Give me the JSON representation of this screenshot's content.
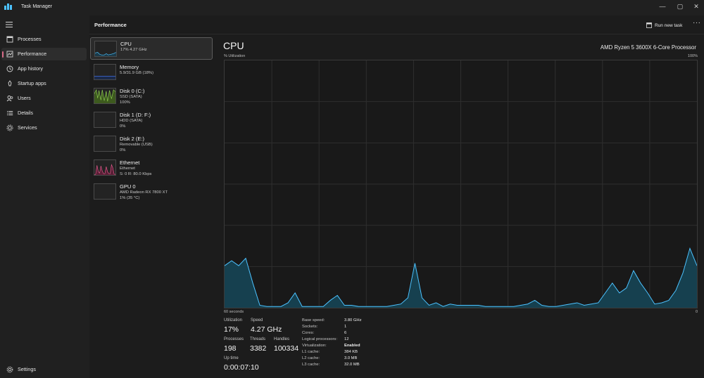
{
  "window": {
    "title": "Task Manager",
    "minimize": "—",
    "maximize": "▢",
    "close": "✕"
  },
  "nav": {
    "items": [
      {
        "label": "Processes",
        "icon": "processes-icon"
      },
      {
        "label": "Performance",
        "icon": "performance-icon",
        "active": true
      },
      {
        "label": "App history",
        "icon": "app-history-icon"
      },
      {
        "label": "Startup apps",
        "icon": "startup-apps-icon"
      },
      {
        "label": "Users",
        "icon": "users-icon"
      },
      {
        "label": "Details",
        "icon": "details-icon"
      },
      {
        "label": "Services",
        "icon": "services-icon"
      }
    ],
    "settings": "Settings"
  },
  "header": {
    "title": "Performance",
    "run_task": "Run new task",
    "more": "···"
  },
  "devices": [
    {
      "name": "CPU",
      "sub1": "17%  4.27 GHz",
      "sub2": "",
      "color": "#4cc2ff",
      "fill": "#1b3a4a"
    },
    {
      "name": "Memory",
      "sub1": "5.9/31.9 GB (18%)",
      "sub2": "",
      "color": "#4c7dff",
      "fill": "#1b2a4a"
    },
    {
      "name": "Disk 0 (C:)",
      "sub1": "SSD (SATA)",
      "sub2": "100%",
      "color": "#8fd14f",
      "fill": "#3d5a1e"
    },
    {
      "name": "Disk 1 (D: F:)",
      "sub1": "HDD (SATA)",
      "sub2": "0%",
      "color": "#8fd14f",
      "fill": "#3d5a1e"
    },
    {
      "name": "Disk 2 (E:)",
      "sub1": "Removable (USB)",
      "sub2": "0%",
      "color": "#8fd14f",
      "fill": "#3d5a1e"
    },
    {
      "name": "Ethernet",
      "sub1": "Ethernet",
      "sub2": "S: 0  R: 80.0 Kbps",
      "color": "#e25a8c",
      "fill": "#5a1e36"
    },
    {
      "name": "GPU 0",
      "sub1": "AMD Radeon RX 7800 XT",
      "sub2": "1%  (35 °C)",
      "color": "#4cc2ff",
      "fill": "#1b3a4a"
    }
  ],
  "detail": {
    "title": "CPU",
    "model": "AMD Ryzen 5 3600X 6-Core Processor",
    "util_label": "% Utilization",
    "max_label": "100%",
    "time_label": "60 seconds",
    "zero_label": "0",
    "accent": "#4cc2ff",
    "fill": "#16404f",
    "history": [
      17,
      19,
      17,
      20,
      10,
      1,
      0.5,
      0.5,
      0.5,
      2,
      6,
      0.5,
      0.5,
      0.5,
      0.5,
      3,
      5,
      1,
      1,
      0.5,
      0.5,
      0.5,
      0.5,
      0.5,
      1,
      1.5,
      4,
      18,
      4,
      1,
      2,
      0.5,
      1.5,
      1,
      1,
      1,
      1,
      0.5,
      0.5,
      0.5,
      0.5,
      0.5,
      1,
      1.5,
      3,
      1,
      0.5,
      0.5,
      1,
      1.5,
      2,
      1,
      1.5,
      2,
      6,
      10,
      6,
      8,
      15,
      10,
      6,
      1.5,
      2,
      3,
      7,
      14,
      24,
      17
    ]
  },
  "stats": {
    "utilization": {
      "label": "Utilization",
      "value": "17%"
    },
    "speed": {
      "label": "Speed",
      "value": "4.27 GHz"
    },
    "processes": {
      "label": "Processes",
      "value": "198"
    },
    "threads": {
      "label": "Threads",
      "value": "3382"
    },
    "handles": {
      "label": "Handles",
      "value": "100334"
    },
    "uptime": {
      "label": "Up time",
      "value": "0:00:07:10"
    }
  },
  "specs": [
    {
      "k": "Base speed:",
      "v": "3.80 GHz"
    },
    {
      "k": "Sockets:",
      "v": "1"
    },
    {
      "k": "Cores:",
      "v": "6"
    },
    {
      "k": "Logical processors:",
      "v": "12"
    },
    {
      "k": "Virtualization:",
      "v": "Enabled"
    },
    {
      "k": "L1 cache:",
      "v": "384 KB"
    },
    {
      "k": "L2 cache:",
      "v": "3.0 MB"
    },
    {
      "k": "L3 cache:",
      "v": "32.0 MB"
    }
  ]
}
